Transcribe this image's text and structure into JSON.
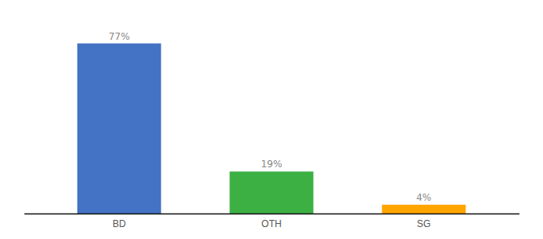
{
  "chart_data": {
    "type": "bar",
    "categories": [
      "BD",
      "OTH",
      "SG"
    ],
    "values": [
      77,
      19,
      4
    ],
    "value_labels": [
      "77%",
      "19%",
      "4%"
    ],
    "colors": [
      "#4472c4",
      "#3cb043",
      "#ffa500"
    ],
    "ylim": [
      0,
      88
    ],
    "data_labels": true,
    "tick_labels": "x",
    "grid": false
  }
}
